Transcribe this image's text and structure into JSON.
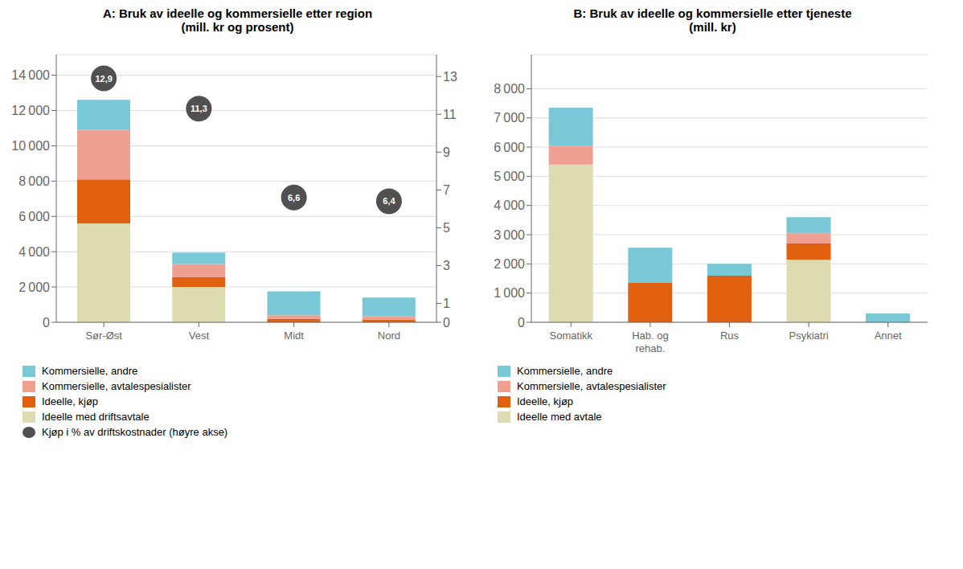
{
  "chart_data": [
    {
      "type": "bar",
      "title": "A: Bruk av ideelle og kommersielle etter region\n(mill. kr og prosent)",
      "stacked": true,
      "grid": true,
      "legend": "bottom",
      "categories": [
        "Sør-Øst",
        "Vest",
        "Midt",
        "Nord"
      ],
      "series": [
        {
          "name": "Ideelle med driftsavtale",
          "color": "#dddcb0",
          "values": [
            5600,
            2000,
            0,
            0
          ]
        },
        {
          "name": "Ideelle, kjøp",
          "color": "#e06010",
          "values": [
            2500,
            550,
            200,
            150
          ]
        },
        {
          "name": "Kommersielle, avtalespesialister",
          "color": "#f0a090",
          "values": [
            2800,
            750,
            200,
            200
          ]
        },
        {
          "name": "Kommersielle, andre",
          "color": "#78c8d8",
          "values": [
            1700,
            650,
            1350,
            1050
          ]
        },
        {
          "name": "Kjøp i % av driftskostnader (høyre akse)",
          "type": "scatter",
          "axis": "y2",
          "color": "#505050",
          "values": [
            12.9,
            11.3,
            6.6,
            6.4
          ],
          "value_labels": [
            "12,9",
            "11,3",
            "6,6",
            "6,4"
          ],
          "data_labels": true
        }
      ],
      "ylim": [
        0,
        15167
      ],
      "yticks": [
        0,
        {
          "value": 2000,
          "label": "2 000"
        },
        {
          "value": 4000,
          "label": "4 000"
        },
        {
          "value": 6000,
          "label": "6 000"
        },
        {
          "value": 8000,
          "label": "8 000"
        },
        {
          "value": 10000,
          "label": "10 000"
        },
        {
          "value": 12000,
          "label": "12 000"
        },
        {
          "value": 14000,
          "label": "14 000"
        }
      ],
      "y2lim": [
        0,
        14.155
      ],
      "y2ticks": [
        0,
        1,
        3,
        5,
        7,
        9,
        11,
        13
      ]
    },
    {
      "type": "bar",
      "title": "B: Bruk av ideelle og kommersielle etter tjeneste\n(mill. kr)",
      "stacked": true,
      "grid": true,
      "legend": "bottom",
      "categories": [
        "Somatikk",
        "Hab. og\nrehab.",
        "Rus",
        "Psykiatri",
        "Annet"
      ],
      "series": [
        {
          "name": "Ideelle med avtale",
          "color": "#dddcb0",
          "values": [
            5400,
            0,
            0,
            2150,
            0
          ]
        },
        {
          "name": "Ideelle, kjøp",
          "color": "#e06010",
          "values": [
            0,
            1350,
            1600,
            550,
            0
          ]
        },
        {
          "name": "Kommersielle, avtalespesialister",
          "color": "#f0a090",
          "values": [
            650,
            0,
            0,
            350,
            0
          ]
        },
        {
          "name": "Kommersielle, andre",
          "color": "#78c8d8",
          "values": [
            1300,
            1200,
            400,
            550,
            300
          ]
        }
      ],
      "ylim": [
        0,
        9167
      ],
      "yticks": [
        0,
        {
          "value": 1000,
          "label": "1 000"
        },
        {
          "value": 2000,
          "label": "2 000"
        },
        {
          "value": 3000,
          "label": "3 000"
        },
        {
          "value": 4000,
          "label": "4 000"
        },
        {
          "value": 5000,
          "label": "5 000"
        },
        {
          "value": 6000,
          "label": "6 000"
        },
        {
          "value": 7000,
          "label": "7 000"
        },
        {
          "value": 8000,
          "label": "8 000"
        }
      ]
    }
  ]
}
